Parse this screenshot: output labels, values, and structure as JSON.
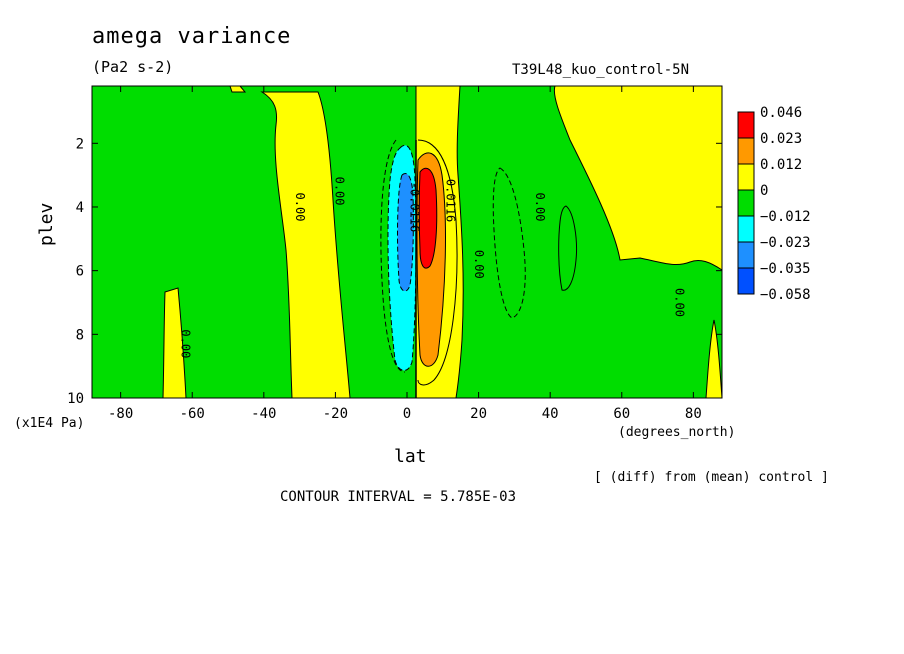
{
  "chart_data": {
    "type": "contour",
    "title": "amega variance",
    "units": "(Pa2 s-2)",
    "run_label": "T39L48_kuo_control-5N",
    "xlabel": "lat",
    "xunits": "(degrees_north)",
    "ylabel": "plev",
    "yunits": "(x1E4 Pa)",
    "xlim": [
      -88,
      88
    ],
    "ylim": [
      10,
      0.2
    ],
    "xticks": [
      -80,
      -60,
      -40,
      -20,
      0,
      20,
      40,
      60,
      80
    ],
    "yticks": [
      2,
      4,
      6,
      8,
      10
    ],
    "note": "[ (diff) from (mean) control ]",
    "contour_interval": "CONTOUR INTERVAL = 5.785E-03",
    "colorbar": {
      "labels": [
        "0.046",
        "0.023",
        "0.012",
        "0",
        "−0.012",
        "−0.023",
        "−0.035",
        "−0.058"
      ],
      "colors": [
        "#ff0000",
        "#ff9900",
        "#ffff00",
        "#00dd00",
        "#00ffff",
        "#1e90ff",
        "#0050ff"
      ]
    },
    "contour_labels": [
      {
        "text": "0.00",
        "lat": -31,
        "plev": 4.0
      },
      {
        "text": "0.00",
        "lat": -20,
        "plev": 3.5
      },
      {
        "text": "0.00",
        "lat": -63,
        "plev": 8.3
      },
      {
        "text": "0.0116",
        "lat": 11,
        "plev": 3.8
      },
      {
        "text": "-0.0116",
        "lat": 1,
        "plev": 4.0
      },
      {
        "text": "0.00",
        "lat": 19,
        "plev": 5.8
      },
      {
        "text": "0.00",
        "lat": 36,
        "plev": 4.0
      },
      {
        "text": "0.00",
        "lat": 75,
        "plev": 7.0
      }
    ]
  }
}
